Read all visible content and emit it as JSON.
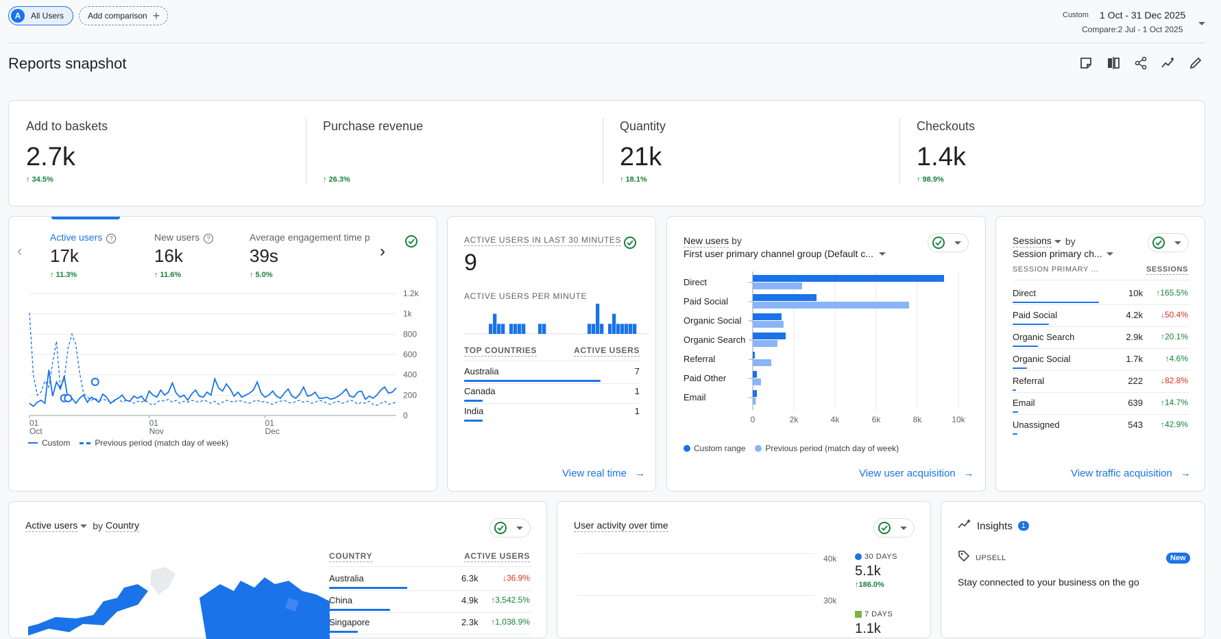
{
  "top_bar": {
    "segment_badge": "A",
    "segment_label": "All Users",
    "add_comparison": "Add comparison",
    "date_mode": "Custom",
    "date_range": "1 Oct - 31 Dec 2025",
    "compare_range": "Compare:2 Jul - 1 Oct 2025"
  },
  "page_title": "Reports snapshot",
  "summary_metrics": [
    {
      "label": "Add to baskets",
      "value": "2.7k",
      "change": "34.5%",
      "direction": "up"
    },
    {
      "label": "Purchase revenue",
      "value": "",
      "change": "26.3%",
      "direction": "up"
    },
    {
      "label": "Quantity",
      "value": "21k",
      "change": "18.1%",
      "direction": "up"
    },
    {
      "label": "Checkouts",
      "value": "1.4k",
      "change": "98.9%",
      "direction": "up"
    }
  ],
  "active_users_card": {
    "tabs": [
      {
        "label": "Active users",
        "value": "17k",
        "change": "11.3%"
      },
      {
        "label": "New users",
        "value": "16k",
        "change": "11.6%"
      },
      {
        "label": "Average engagement time p",
        "value": "39s",
        "change": "5.0%"
      }
    ],
    "legend_current": "Custom",
    "legend_previous": "Previous period (match day of week)"
  },
  "realtime_card": {
    "title": "ACTIVE USERS IN LAST 30 MINUTES",
    "value": "9",
    "per_minute_label": "ACTIVE USERS PER MINUTE",
    "col_country": "TOP COUNTRIES",
    "col_users": "ACTIVE USERS",
    "rows": [
      {
        "country": "Australia",
        "users": "7",
        "share": 0.88
      },
      {
        "country": "Canada",
        "users": "1",
        "share": 0.12
      },
      {
        "country": "India",
        "users": "1",
        "share": 0.12
      }
    ],
    "link": "View real time"
  },
  "new_users_card": {
    "title_metric": "New users",
    "title_by": "by",
    "title_dimension": "First user primary channel group (Default c...",
    "legend_current": "Custom range",
    "legend_previous": "Previous period (match day of week)",
    "link": "View user acquisition"
  },
  "sessions_card": {
    "title_metric": "Sessions",
    "title_by": "by",
    "title_dimension": "Session primary ch...",
    "col_dimension": "SESSION PRIMARY ...",
    "col_metric": "SESSIONS",
    "rows": [
      {
        "name": "Direct",
        "value": "10k",
        "change": "165.5%",
        "direction": "up",
        "share": 1.0
      },
      {
        "name": "Paid Social",
        "value": "4.2k",
        "change": "50.4%",
        "direction": "down",
        "share": 0.42
      },
      {
        "name": "Organic Search",
        "value": "2.9k",
        "change": "20.1%",
        "direction": "up",
        "share": 0.29
      },
      {
        "name": "Organic Social",
        "value": "1.7k",
        "change": "4.6%",
        "direction": "up",
        "share": 0.17
      },
      {
        "name": "Referral",
        "value": "222",
        "change": "82.8%",
        "direction": "down",
        "share": 0.03
      },
      {
        "name": "Email",
        "value": "639",
        "change": "14.7%",
        "direction": "up",
        "share": 0.064
      },
      {
        "name": "Unassigned",
        "value": "543",
        "change": "42.9%",
        "direction": "up",
        "share": 0.055
      }
    ],
    "link": "View traffic acquisition"
  },
  "country_card": {
    "title_metric": "Active users",
    "title_by": "by",
    "title_dimension": "Country",
    "col_country": "COUNTRY",
    "col_users": "ACTIVE USERS",
    "rows": [
      {
        "country": "Australia",
        "value": "6.3k",
        "change": "36.9%",
        "direction": "down",
        "share": 1.0
      },
      {
        "country": "China",
        "value": "4.9k",
        "change": "3,542.5%",
        "direction": "up",
        "share": 0.78
      },
      {
        "country": "Singapore",
        "value": "2.3k",
        "change": "1,038.9%",
        "direction": "up",
        "share": 0.37
      }
    ]
  },
  "user_activity_card": {
    "title": "User activity over time",
    "ticks": [
      "40k",
      "30k"
    ],
    "legend": [
      {
        "label": "30 DAYS",
        "value": "5.1k",
        "change": "186.0%",
        "color": "#1a73e8"
      },
      {
        "label": "7 DAYS",
        "value": "1.1k",
        "color": "#7cb342"
      }
    ]
  },
  "insights_card": {
    "title": "Insights",
    "count": "1",
    "tag": "UPSELL",
    "badge": "New",
    "text": "Stay connected to your business on the go"
  },
  "chart_data": [
    {
      "type": "line",
      "title": "Active users",
      "x_tick_labels": [
        [
          "01",
          "Oct"
        ],
        [
          "01",
          "Nov"
        ],
        [
          "01",
          "Dec"
        ]
      ],
      "y_ticks": [
        "1.2k",
        "1k",
        "800",
        "600",
        "400",
        "200",
        "0"
      ],
      "ylim": [
        0,
        1200
      ],
      "series": [
        {
          "name": "Custom",
          "style": "solid",
          "color": "#1a73e8",
          "values": [
            120,
            90,
            130,
            150,
            120,
            450,
            190,
            330,
            260,
            390,
            150,
            170,
            120,
            170,
            200,
            130,
            180,
            160,
            130,
            210,
            180,
            120,
            150,
            170,
            200,
            150,
            140,
            190,
            170,
            190,
            140,
            240,
            200,
            180,
            250,
            200,
            230,
            320,
            220,
            180,
            200,
            150,
            210,
            250,
            190,
            180,
            230,
            200,
            360,
            270,
            240,
            310,
            260,
            190,
            230,
            180,
            200,
            220,
            250,
            330,
            220,
            180,
            200,
            240,
            190,
            170,
            220,
            260,
            190,
            170,
            210,
            280,
            190,
            200,
            230,
            170,
            170,
            180,
            160,
            170,
            190,
            220,
            260,
            190,
            180,
            230,
            240,
            160,
            190,
            170,
            200,
            250,
            280,
            220,
            230,
            270
          ]
        },
        {
          "name": "Previous period (match day of week)",
          "style": "dashed",
          "color": "#1a73e8",
          "values": [
            1010,
            400,
            200,
            230,
            340,
            280,
            520,
            730,
            270,
            360,
            660,
            800,
            700,
            420,
            220,
            180,
            150,
            170,
            140,
            160,
            150,
            130,
            140,
            170,
            130,
            150,
            140,
            120,
            140,
            130,
            150,
            120,
            100,
            130,
            150,
            140,
            160,
            130,
            150,
            120,
            140,
            130,
            150,
            140,
            130,
            150,
            140,
            120,
            140,
            110,
            130,
            150,
            140,
            130,
            150,
            140,
            130,
            120,
            140,
            150,
            130,
            140,
            120,
            110,
            130,
            140,
            150,
            130,
            120,
            140,
            150,
            130,
            140,
            120,
            130,
            150,
            140,
            120,
            110,
            130,
            140,
            120,
            130,
            150,
            140,
            110,
            130,
            120,
            140,
            110,
            100,
            120,
            140,
            110,
            120,
            130
          ]
        }
      ]
    },
    {
      "type": "bar",
      "title": "Active users per minute",
      "values": [
        0,
        0,
        0,
        0,
        0,
        0,
        1,
        2,
        1,
        1,
        0,
        1,
        1,
        1,
        1,
        0,
        0,
        0,
        1,
        1,
        0,
        0,
        0,
        0,
        0,
        0,
        0,
        0,
        0,
        0,
        1,
        1,
        3,
        1,
        0,
        1,
        2,
        1,
        1,
        1,
        1,
        1,
        0,
        0,
        0
      ],
      "ylim": [
        0,
        3
      ]
    },
    {
      "type": "bar",
      "orientation": "horizontal",
      "title": "New users by First user primary channel group (Default c...",
      "categories": [
        "Direct",
        "Paid Social",
        "Organic Social",
        "Organic Search",
        "Referral",
        "Paid Other",
        "Email"
      ],
      "x_ticks": [
        "0",
        "2k",
        "4k",
        "6k",
        "8k",
        "10k"
      ],
      "xlim": [
        0,
        10000
      ],
      "series": [
        {
          "name": "Custom range",
          "color": "#1a73e8",
          "values": [
            9300,
            3100,
            1400,
            1600,
            100,
            200,
            200
          ]
        },
        {
          "name": "Previous period (match day of week)",
          "color": "#8ab4f8",
          "values": [
            2400,
            7600,
            1500,
            1200,
            900,
            400,
            150
          ]
        }
      ]
    }
  ]
}
